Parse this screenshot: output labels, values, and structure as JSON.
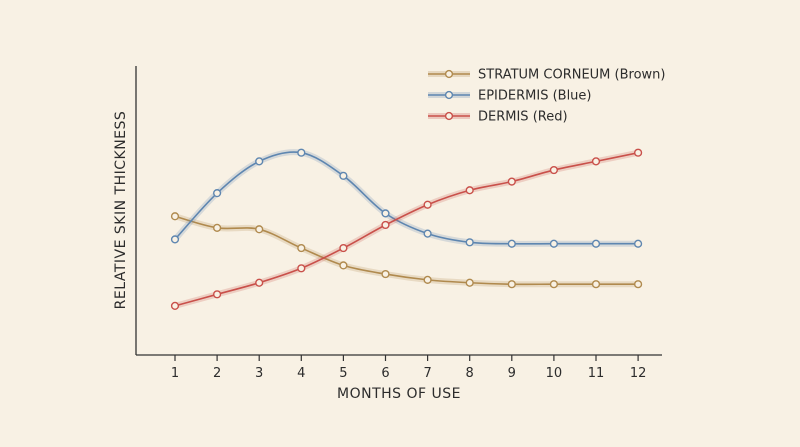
{
  "chart_data": {
    "type": "line",
    "title": "",
    "xlabel": "MONTHS OF USE",
    "ylabel": "RELATIVE SKIN THICKNESS",
    "x": [
      1,
      2,
      3,
      4,
      5,
      6,
      7,
      8,
      9,
      10,
      11,
      12
    ],
    "ylim": [
      0,
      100
    ],
    "grid": false,
    "legend_position": "top-right",
    "series": [
      {
        "name": "STRATUM CORNEUM (Brown)",
        "color": "#b08a4e",
        "values": [
          48,
          44,
          43.5,
          37,
          31,
          28,
          26,
          25,
          24.5,
          24.5,
          24.5,
          24.5
        ]
      },
      {
        "name": "EPIDERMIS (Blue)",
        "color": "#5e86b0",
        "values": [
          40,
          56,
          67,
          70,
          62,
          49,
          42,
          39,
          38.5,
          38.5,
          38.5,
          38.5
        ]
      },
      {
        "name": "DERMIS (Red)",
        "color": "#c9504a",
        "values": [
          17,
          21,
          25,
          30,
          37,
          45,
          52,
          57,
          60,
          64,
          67,
          70
        ]
      }
    ]
  }
}
